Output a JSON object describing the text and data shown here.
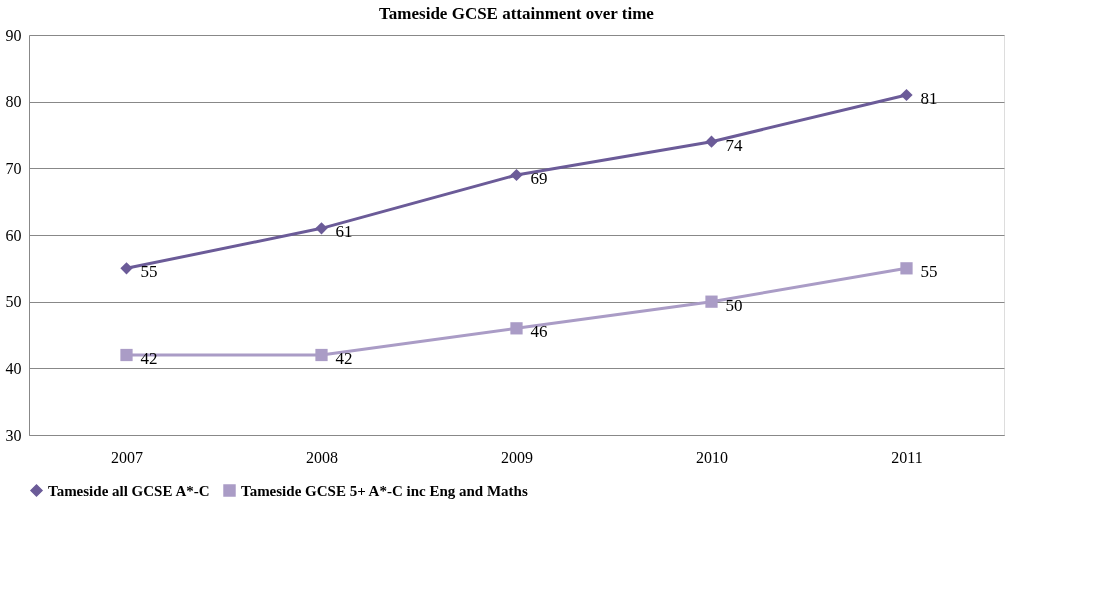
{
  "chart_data": {
    "type": "line",
    "title": "Tameside GCSE attainment over time",
    "categories": [
      "2007",
      "2008",
      "2009",
      "2010",
      "2011"
    ],
    "series": [
      {
        "name": "Tameside all GCSE A*-C",
        "color": "#6b5b98",
        "marker": "diamond",
        "values": [
          55,
          61,
          69,
          74,
          81
        ]
      },
      {
        "name": "Tameside GCSE 5+ A*-C inc Eng and Maths",
        "color": "#aa9cc6",
        "marker": "square",
        "values": [
          42,
          42,
          46,
          50,
          55
        ]
      }
    ],
    "ylim": [
      30,
      90
    ],
    "yticks": [
      30,
      40,
      50,
      60,
      70,
      80,
      90
    ],
    "grid": "y",
    "legend": "bottom",
    "data_labels": true,
    "line_style": "solid"
  }
}
